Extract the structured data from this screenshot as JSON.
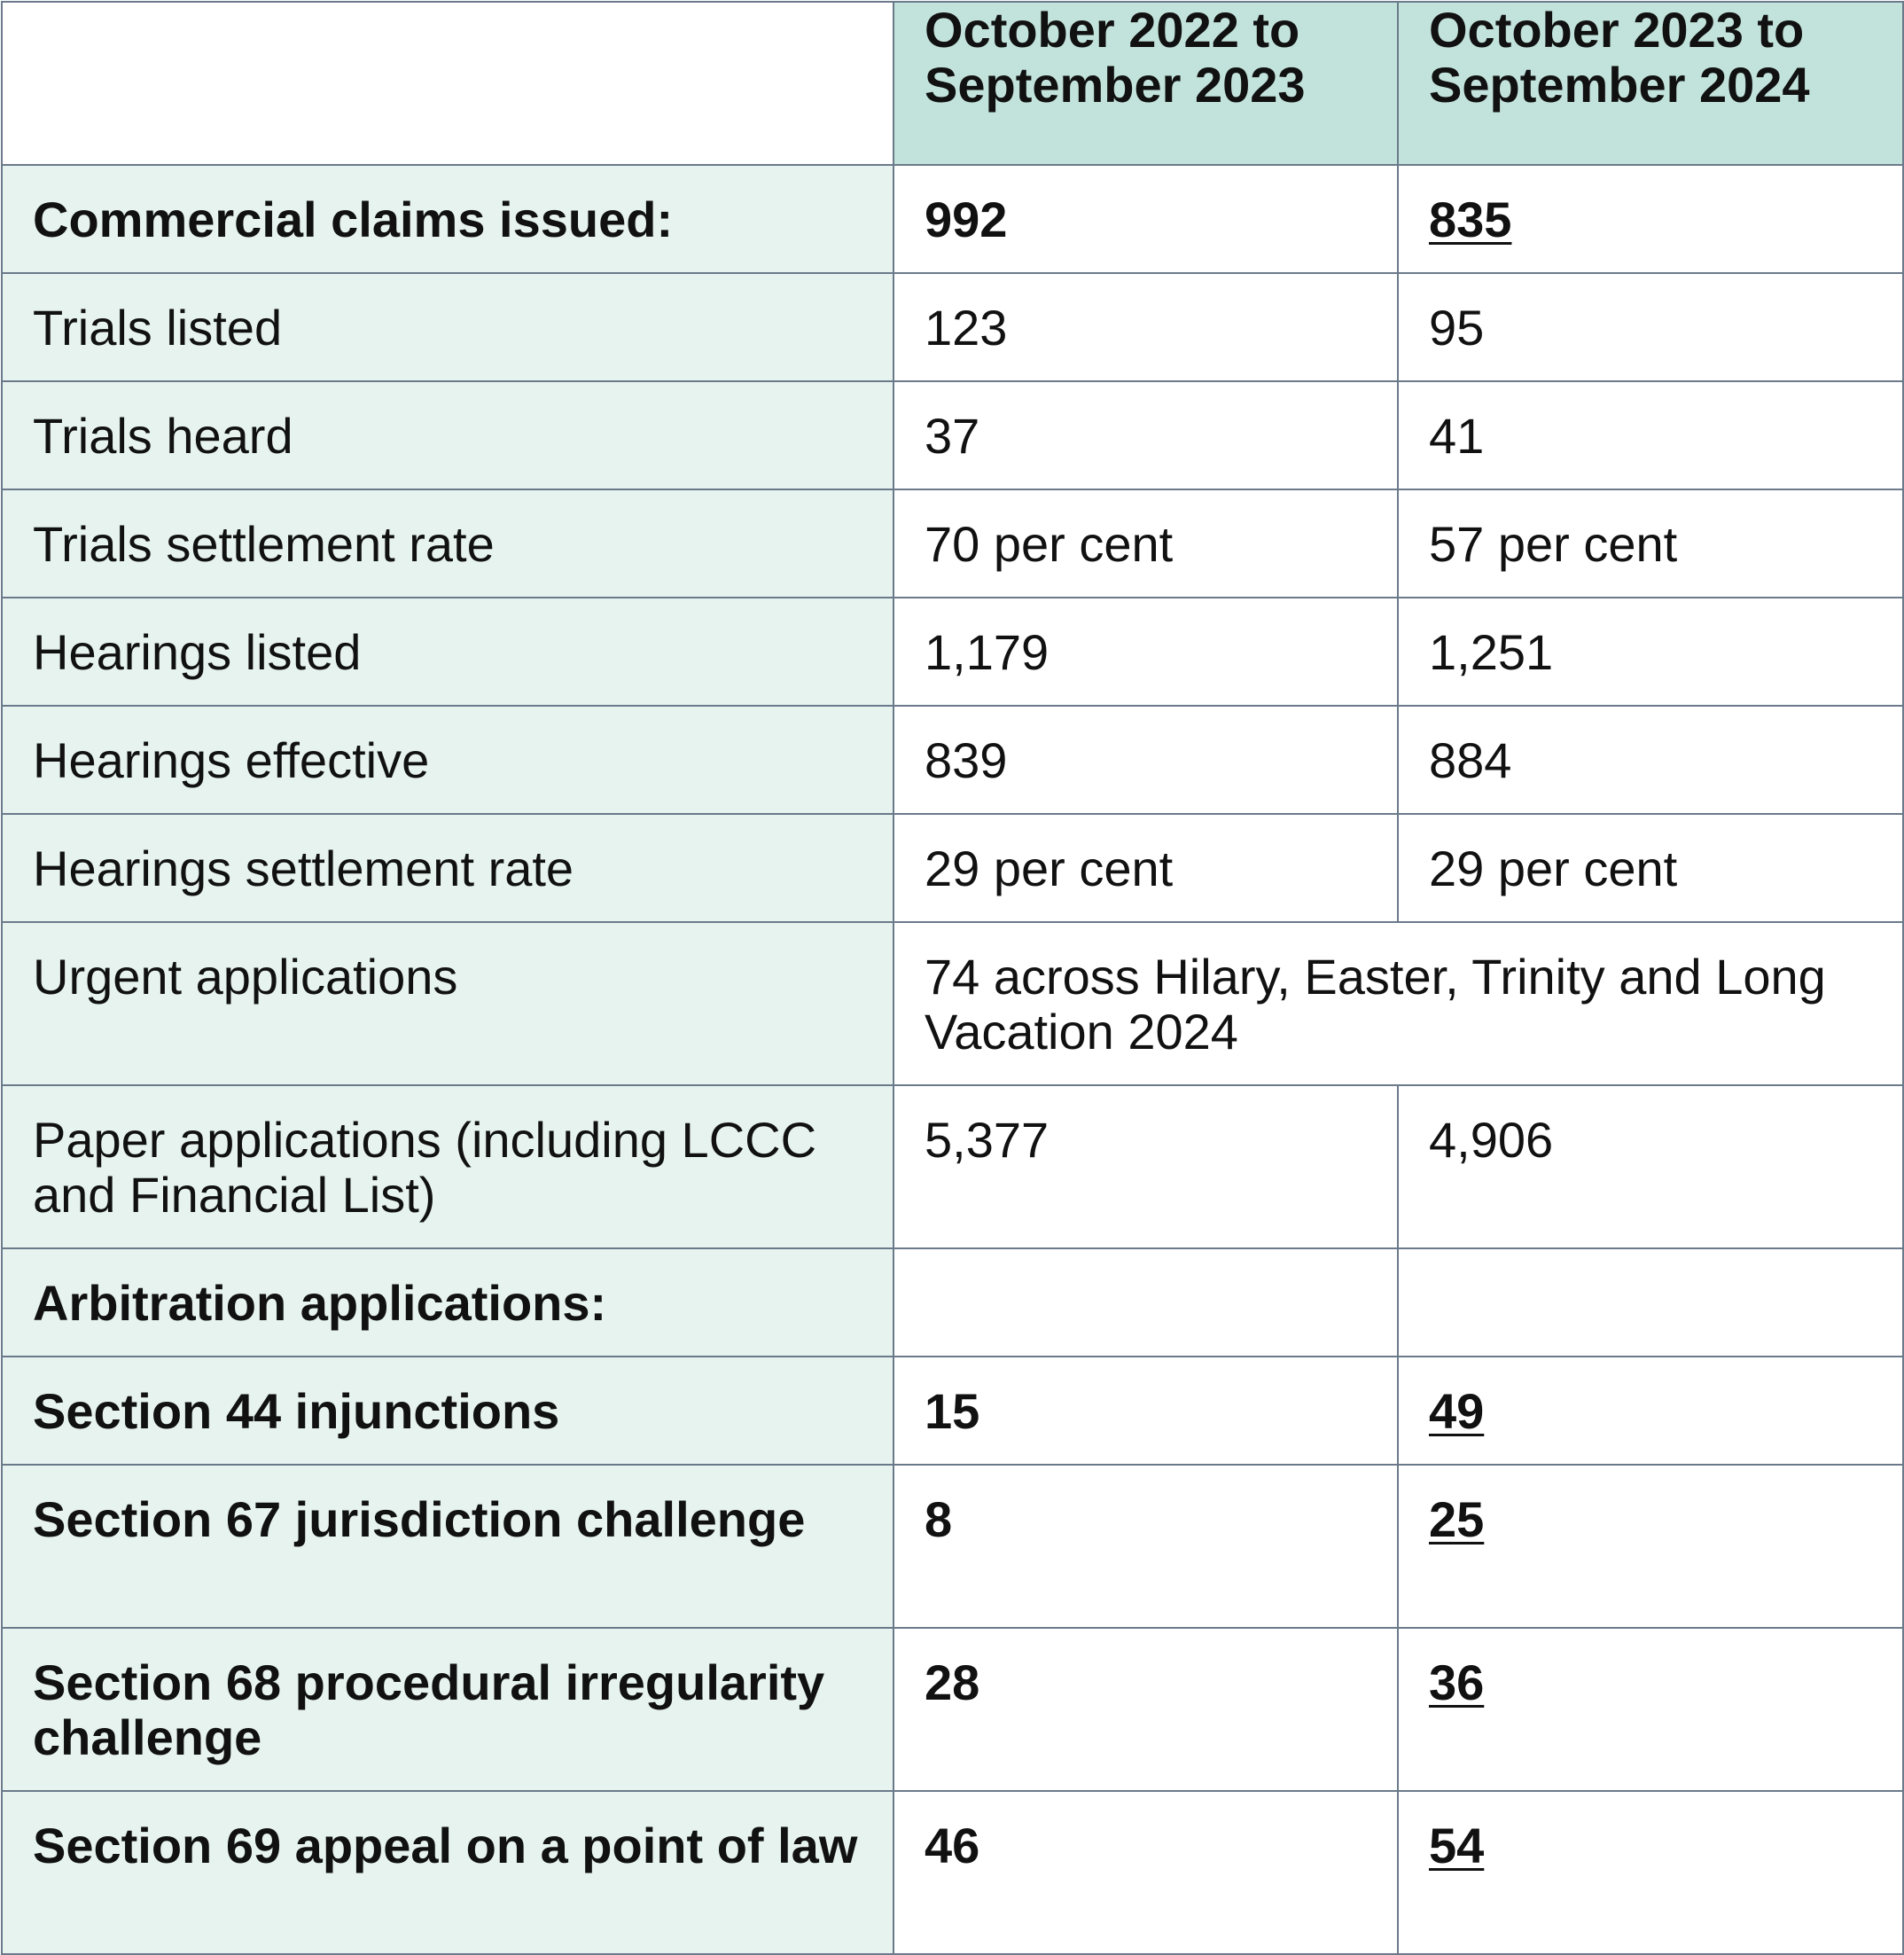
{
  "table": {
    "header": {
      "col1": "",
      "col2": "October 2022 to September 2023",
      "col3": "October 2023 to September 2024"
    },
    "rows": [
      {
        "label": "Commercial claims issued:",
        "v1": "992",
        "v2": "835"
      },
      {
        "label": "Trials listed",
        "v1": "123",
        "v2": "95"
      },
      {
        "label": "Trials heard",
        "v1": "37",
        "v2": "41"
      },
      {
        "label": "Trials settlement rate",
        "v1": "70 per cent",
        "v2": "57 per cent"
      },
      {
        "label": "Hearings listed",
        "v1": "1,179",
        "v2": "1,251"
      },
      {
        "label": "Hearings effective",
        "v1": "839",
        "v2": "884"
      },
      {
        "label": "Hearings settlement rate",
        "v1": "29 per cent",
        "v2": "29 per cent"
      },
      {
        "label": "Urgent applications",
        "merged": "74 across Hilary, Easter, Trinity and Long Vacation 2024"
      },
      {
        "label": "Paper applications (including LCCC and Financial List)",
        "v1": "5,377",
        "v2": "4,906"
      },
      {
        "label": "Arbitration applications:",
        "v1": "",
        "v2": ""
      },
      {
        "label": "Section 44 injunctions",
        "v1": "15",
        "v2": "49"
      },
      {
        "label": "Section 67 jurisdiction challenge",
        "v1": "8",
        "v2": "25"
      },
      {
        "label": "Section 68 procedural irregularity challenge",
        "v1": "28",
        "v2": "36"
      },
      {
        "label": "Section 69 appeal on a point of law",
        "v1": "46",
        "v2": "54"
      }
    ]
  }
}
